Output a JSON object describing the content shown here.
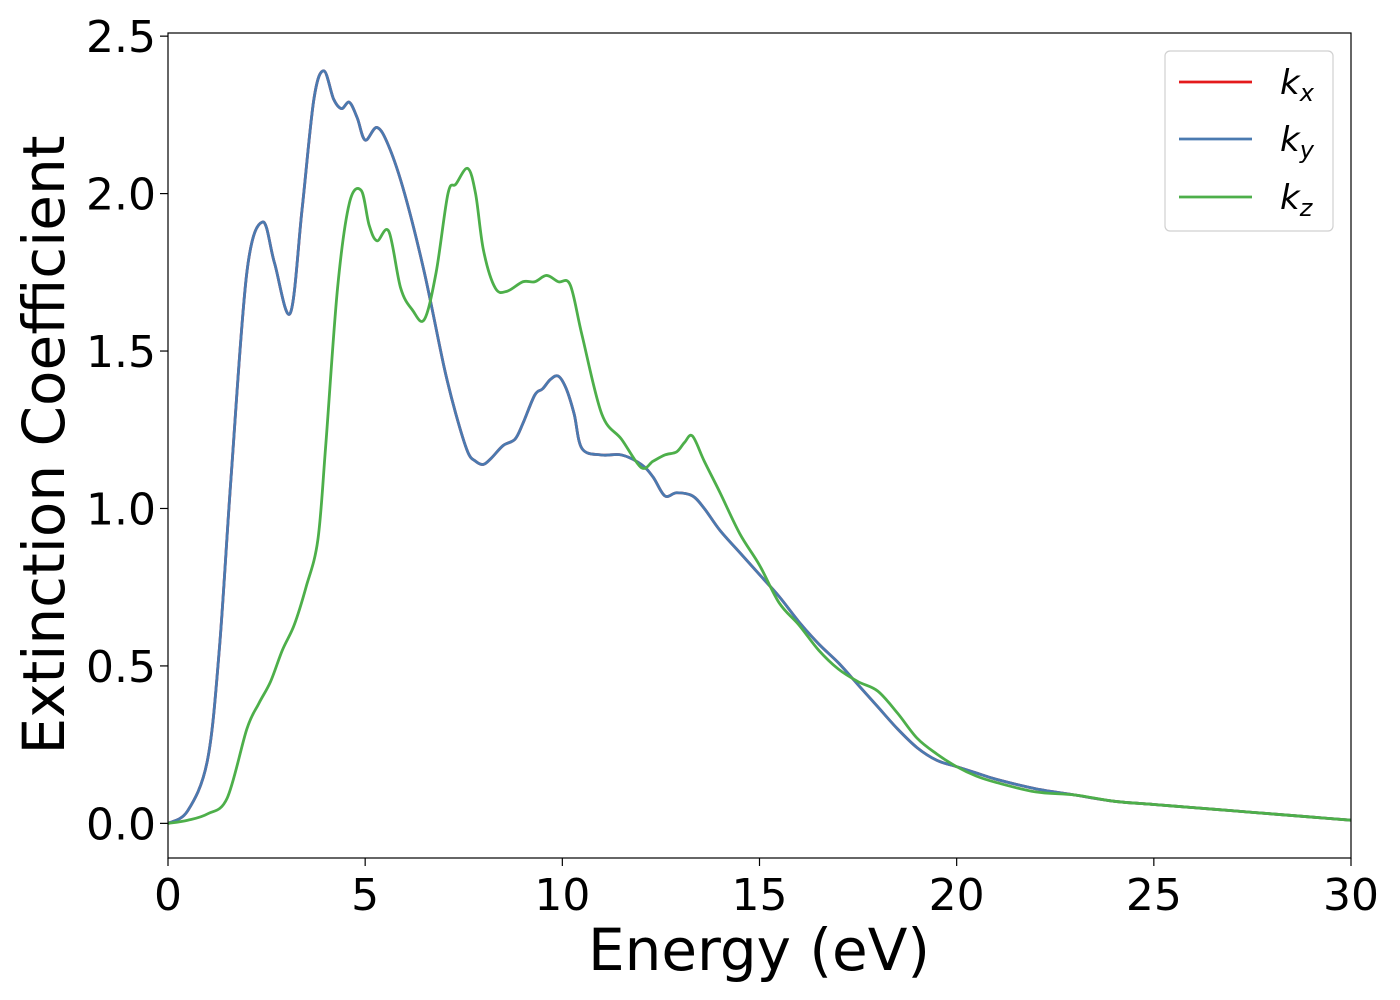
{
  "chart_data": {
    "type": "line",
    "title": "",
    "xlabel": "Energy (eV)",
    "ylabel": "Extinction Coefficient",
    "xlim": [
      0,
      30
    ],
    "ylim": [
      -0.11,
      2.51
    ],
    "xticks": [
      0,
      5,
      10,
      15,
      20,
      25,
      30
    ],
    "xtick_labels": [
      "0",
      "5",
      "10",
      "15",
      "20",
      "25",
      "30"
    ],
    "yticks": [
      0.0,
      0.5,
      1.0,
      1.5,
      2.0,
      2.5
    ],
    "ytick_labels": [
      "0.0",
      "0.5",
      "1.0",
      "1.5",
      "2.0",
      "2.5"
    ],
    "grid": false,
    "legend_position": "top-right",
    "series": [
      {
        "name": "k_x",
        "label_main": "k",
        "label_sub": "x",
        "color": "#e41a1c",
        "x": [
          0,
          0.5,
          1.0,
          1.3,
          1.6,
          2.0,
          2.4,
          2.7,
          3.1,
          3.4,
          3.7,
          3.95,
          4.2,
          4.4,
          4.6,
          4.8,
          5.0,
          5.3,
          5.6,
          6.0,
          6.5,
          7.0,
          7.3,
          7.6,
          7.8,
          8.0,
          8.2,
          8.5,
          8.8,
          9.0,
          9.3,
          9.5,
          9.7,
          9.9,
          10.1,
          10.3,
          10.5,
          11.0,
          11.5,
          12.0,
          12.3,
          12.6,
          12.9,
          13.3,
          13.6,
          14.0,
          14.5,
          15.0,
          15.5,
          16.0,
          16.5,
          17.0,
          17.5,
          18.0,
          18.5,
          19.0,
          19.5,
          20.0,
          20.5,
          21.0,
          22.0,
          23.0,
          24.0,
          25.0,
          26.0,
          27.0,
          28.0,
          29.0,
          30.0
        ],
        "y": [
          0.0,
          0.04,
          0.2,
          0.55,
          1.1,
          1.75,
          1.91,
          1.78,
          1.62,
          1.95,
          2.3,
          2.39,
          2.3,
          2.27,
          2.29,
          2.24,
          2.17,
          2.21,
          2.15,
          2.0,
          1.75,
          1.45,
          1.3,
          1.18,
          1.15,
          1.14,
          1.16,
          1.2,
          1.22,
          1.27,
          1.36,
          1.38,
          1.41,
          1.42,
          1.38,
          1.3,
          1.19,
          1.17,
          1.17,
          1.14,
          1.1,
          1.04,
          1.05,
          1.04,
          1.0,
          0.93,
          0.86,
          0.79,
          0.72,
          0.64,
          0.57,
          0.51,
          0.44,
          0.37,
          0.3,
          0.24,
          0.2,
          0.18,
          0.16,
          0.14,
          0.11,
          0.09,
          0.07,
          0.06,
          0.05,
          0.04,
          0.03,
          0.02,
          0.01
        ]
      },
      {
        "name": "k_y",
        "label_main": "k",
        "label_sub": "y",
        "color": "#4a7ab0",
        "x": [
          0,
          0.5,
          1.0,
          1.3,
          1.6,
          2.0,
          2.4,
          2.7,
          3.1,
          3.4,
          3.7,
          3.95,
          4.2,
          4.4,
          4.6,
          4.8,
          5.0,
          5.3,
          5.6,
          6.0,
          6.5,
          7.0,
          7.3,
          7.6,
          7.8,
          8.0,
          8.2,
          8.5,
          8.8,
          9.0,
          9.3,
          9.5,
          9.7,
          9.9,
          10.1,
          10.3,
          10.5,
          11.0,
          11.5,
          12.0,
          12.3,
          12.6,
          12.9,
          13.3,
          13.6,
          14.0,
          14.5,
          15.0,
          15.5,
          16.0,
          16.5,
          17.0,
          17.5,
          18.0,
          18.5,
          19.0,
          19.5,
          20.0,
          20.5,
          21.0,
          22.0,
          23.0,
          24.0,
          25.0,
          26.0,
          27.0,
          28.0,
          29.0,
          30.0
        ],
        "y": [
          0.0,
          0.04,
          0.2,
          0.55,
          1.1,
          1.75,
          1.91,
          1.78,
          1.62,
          1.95,
          2.3,
          2.39,
          2.3,
          2.27,
          2.29,
          2.24,
          2.17,
          2.21,
          2.15,
          2.0,
          1.75,
          1.45,
          1.3,
          1.18,
          1.15,
          1.14,
          1.16,
          1.2,
          1.22,
          1.27,
          1.36,
          1.38,
          1.41,
          1.42,
          1.38,
          1.3,
          1.19,
          1.17,
          1.17,
          1.14,
          1.1,
          1.04,
          1.05,
          1.04,
          1.0,
          0.93,
          0.86,
          0.79,
          0.72,
          0.64,
          0.57,
          0.51,
          0.44,
          0.37,
          0.3,
          0.24,
          0.2,
          0.18,
          0.16,
          0.14,
          0.11,
          0.09,
          0.07,
          0.06,
          0.05,
          0.04,
          0.03,
          0.02,
          0.01
        ]
      },
      {
        "name": "k_z",
        "label_main": "k",
        "label_sub": "z",
        "color": "#4daf4a",
        "x": [
          0,
          0.5,
          1.0,
          1.5,
          2.0,
          2.3,
          2.6,
          2.9,
          3.2,
          3.5,
          3.8,
          4.0,
          4.3,
          4.6,
          4.9,
          5.1,
          5.3,
          5.6,
          5.9,
          6.2,
          6.5,
          6.8,
          7.1,
          7.3,
          7.6,
          7.8,
          8.0,
          8.3,
          8.6,
          9.0,
          9.3,
          9.6,
          9.9,
          10.2,
          10.5,
          11.0,
          11.5,
          12.0,
          12.3,
          12.6,
          12.9,
          13.1,
          13.3,
          13.6,
          14.0,
          14.5,
          15.0,
          15.5,
          16.0,
          16.5,
          17.0,
          17.5,
          18.0,
          18.5,
          19.0,
          19.5,
          20.0,
          20.5,
          21.0,
          22.0,
          23.0,
          24.0,
          25.0,
          26.0,
          27.0,
          28.0,
          29.0,
          30.0
        ],
        "y": [
          0.0,
          0.01,
          0.03,
          0.08,
          0.3,
          0.38,
          0.45,
          0.55,
          0.63,
          0.75,
          0.9,
          1.2,
          1.7,
          1.97,
          2.01,
          1.9,
          1.85,
          1.88,
          1.7,
          1.63,
          1.6,
          1.75,
          2.0,
          2.03,
          2.08,
          2.0,
          1.82,
          1.7,
          1.69,
          1.72,
          1.72,
          1.74,
          1.72,
          1.71,
          1.55,
          1.3,
          1.22,
          1.13,
          1.15,
          1.17,
          1.18,
          1.21,
          1.23,
          1.15,
          1.05,
          0.92,
          0.82,
          0.7,
          0.63,
          0.55,
          0.49,
          0.45,
          0.42,
          0.35,
          0.27,
          0.22,
          0.18,
          0.15,
          0.13,
          0.1,
          0.09,
          0.07,
          0.06,
          0.05,
          0.04,
          0.03,
          0.02,
          0.01
        ]
      }
    ]
  }
}
